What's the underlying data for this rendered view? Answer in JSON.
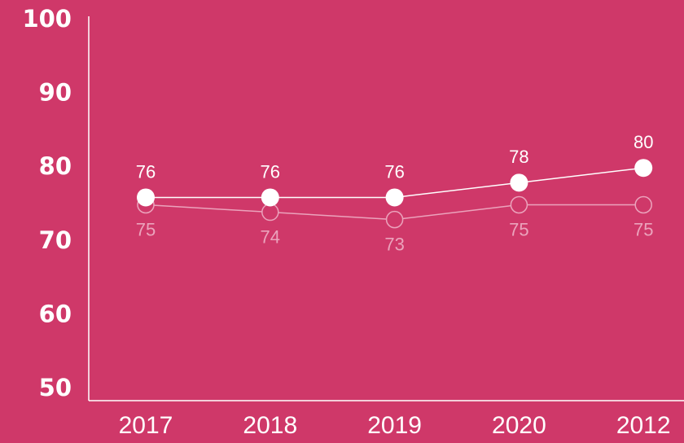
{
  "chart_data": {
    "type": "line",
    "categories": [
      "2017",
      "2018",
      "2019",
      "2020",
      "2012"
    ],
    "series": [
      {
        "color": "#ffffff",
        "marker": "filled",
        "label_position": "above",
        "values": [
          76,
          76,
          76,
          78,
          80
        ]
      },
      {
        "color": "#eba3bc",
        "marker": "hollow",
        "label_position": "below",
        "values": [
          75,
          74,
          73,
          75,
          75
        ]
      }
    ],
    "ylim": [
      50,
      100
    ],
    "yticks": [
      50,
      60,
      70,
      80,
      90,
      100
    ],
    "grid": false
  }
}
